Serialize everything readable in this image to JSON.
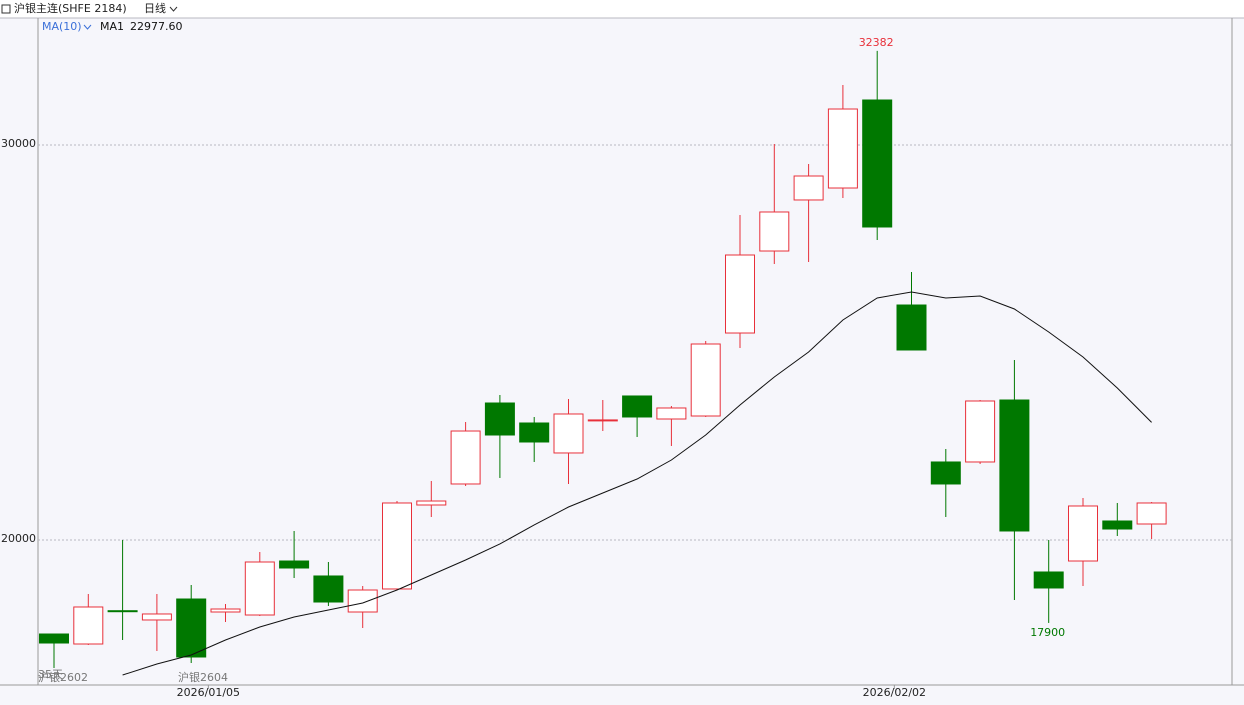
{
  "chart_data": {
    "type": "candlestick",
    "title": "沪银主连(SHFE 2184)",
    "period": "日线",
    "indicator": "MA(10)",
    "up_color": "#e8303a",
    "down_color": "#007800",
    "ylim": [
      16329,
      33215
    ],
    "yticks": [
      20000,
      30000
    ],
    "grid": true,
    "x_labels": [
      null,
      null,
      null,
      null,
      null,
      "2026/01/05",
      null,
      null,
      null,
      null,
      null,
      null,
      null,
      null,
      null,
      null,
      null,
      null,
      null,
      null,
      null,
      null,
      null,
      null,
      null,
      "2026/02/02",
      null,
      null,
      null,
      null,
      null,
      null,
      null
    ],
    "candles": [
      {
        "open": 17620,
        "high": 17620,
        "low": 16760,
        "close": 17392
      },
      {
        "open": 17367,
        "high": 18633,
        "low": 17342,
        "close": 18304
      },
      {
        "open": 18210,
        "high": 20000,
        "low": 17468,
        "close": 18200
      },
      {
        "open": 17975,
        "high": 18633,
        "low": 17190,
        "close": 18127
      },
      {
        "open": 18506,
        "high": 18861,
        "low": 16886,
        "close": 17038
      },
      {
        "open": 18177,
        "high": 18380,
        "low": 17924,
        "close": 18253
      },
      {
        "open": 18101,
        "high": 19696,
        "low": 18076,
        "close": 19443
      },
      {
        "open": 19468,
        "high": 20228,
        "low": 19038,
        "close": 19291
      },
      {
        "open": 19089,
        "high": 19443,
        "low": 18329,
        "close": 18430
      },
      {
        "open": 18177,
        "high": 18835,
        "low": 17772,
        "close": 18734
      },
      {
        "open": 18760,
        "high": 20987,
        "low": 18734,
        "close": 20937
      },
      {
        "open": 20886,
        "high": 21494,
        "low": 20582,
        "close": 20987
      },
      {
        "open": 21418,
        "high": 22987,
        "low": 21367,
        "close": 22759
      },
      {
        "open": 23468,
        "high": 23671,
        "low": 21570,
        "close": 22658
      },
      {
        "open": 22962,
        "high": 23114,
        "low": 21975,
        "close": 22481
      },
      {
        "open": 22203,
        "high": 23570,
        "low": 21418,
        "close": 23190
      },
      {
        "open": 23030,
        "high": 23544,
        "low": 22759,
        "close": 23040
      },
      {
        "open": 23646,
        "high": 23646,
        "low": 22608,
        "close": 23114
      },
      {
        "open": 23063,
        "high": 23392,
        "low": 22380,
        "close": 23342
      },
      {
        "open": 23139,
        "high": 25038,
        "low": 23114,
        "close": 24962
      },
      {
        "open": 25240,
        "high": 28228,
        "low": 24861,
        "close": 27215
      },
      {
        "open": 27316,
        "high": 30025,
        "low": 26987,
        "close": 28304
      },
      {
        "open": 28608,
        "high": 29519,
        "low": 27038,
        "close": 29215
      },
      {
        "open": 28911,
        "high": 31519,
        "low": 28658,
        "close": 30911
      },
      {
        "open": 31139,
        "high": 32382,
        "low": 27595,
        "close": 27924
      },
      {
        "open": 25949,
        "high": 26785,
        "low": 24810,
        "close": 24810
      },
      {
        "open": 21975,
        "high": 22304,
        "low": 20582,
        "close": 21418
      },
      {
        "open": 21975,
        "high": 23544,
        "low": 21924,
        "close": 23519
      },
      {
        "open": 23544,
        "high": 24557,
        "low": 18481,
        "close": 20228
      },
      {
        "open": 19190,
        "high": 20000,
        "low": 17900,
        "close": 18785
      },
      {
        "open": 19468,
        "high": 21063,
        "low": 18835,
        "close": 20861
      },
      {
        "open": 20481,
        "high": 20937,
        "low": 20101,
        "close": 20278
      },
      {
        "open": 20405,
        "high": 20962,
        "low": 20025,
        "close": 20937
      }
    ],
    "ma": {
      "name": "MA1",
      "color": "#111111",
      "current_label": "22977.60",
      "values": [
        null,
        null,
        16582,
        16861,
        17089,
        17468,
        17797,
        18051,
        18228,
        18405,
        18734,
        19114,
        19494,
        19899,
        20380,
        20835,
        21190,
        21544,
        22025,
        22658,
        23418,
        24127,
        24759,
        25570,
        26127,
        26278,
        26127,
        26177,
        25848,
        25266,
        24633,
        23848,
        22977.6
      ]
    },
    "annotations": [
      {
        "text": "32382",
        "candle": 24,
        "at": "high"
      },
      {
        "text": "17900",
        "candle": 29,
        "at": "low"
      }
    ],
    "contract_labels": [
      "35天",
      "沪银2602",
      "沪银2604"
    ]
  }
}
